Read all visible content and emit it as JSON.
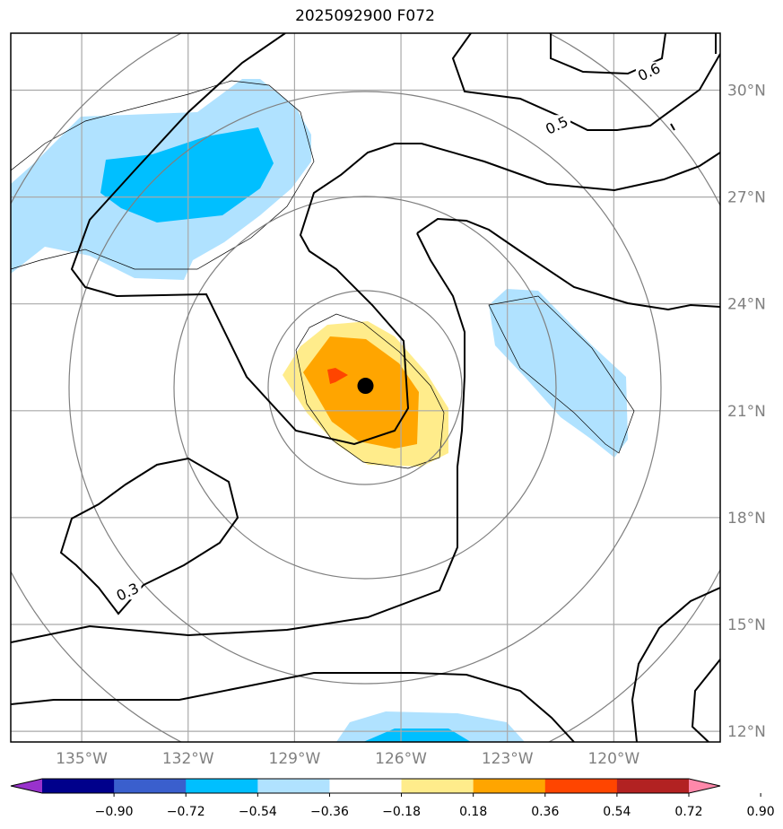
{
  "chart_data": {
    "type": "contour_map",
    "title": "2025092900 F072",
    "map": {
      "lon_ticks": [
        "135°W",
        "132°W",
        "129°W",
        "126°W",
        "123°W",
        "120°W"
      ],
      "lon_values": [
        -135,
        -132,
        -129,
        -126,
        -123,
        -120
      ],
      "lat_ticks": [
        "12°N",
        "15°N",
        "18°N",
        "21°N",
        "24°N",
        "27°N",
        "30°N"
      ],
      "lat_values": [
        12,
        15,
        18,
        21,
        24,
        27,
        30
      ],
      "lon_range": [
        -137,
        -117
      ],
      "lat_range": [
        11.7,
        31.6
      ],
      "grid": true
    },
    "center_marker": {
      "lon": -127.0,
      "lat": 21.7
    },
    "contour_labels": [
      {
        "text": "0.6",
        "lon": -119.0,
        "lat": 30.5
      },
      {
        "text": "0.5",
        "lon": -121.6,
        "lat": 29.0
      },
      {
        "text": "0.3",
        "lon": -133.7,
        "lat": 15.9
      }
    ],
    "colorbar": {
      "ticks": [
        "−0.90",
        "−0.72",
        "−0.54",
        "−0.36",
        "−0.18",
        "0.18",
        "0.36",
        "0.54",
        "0.72",
        "0.90"
      ],
      "colors": [
        "#9932cc",
        "#00008b",
        "#3a5fcd",
        "#00bfff",
        "#b0e2ff",
        "#ffffff",
        "#ffec8b",
        "#ffa500",
        "#ff4500",
        "#b22222",
        "#ff88aa"
      ]
    }
  }
}
